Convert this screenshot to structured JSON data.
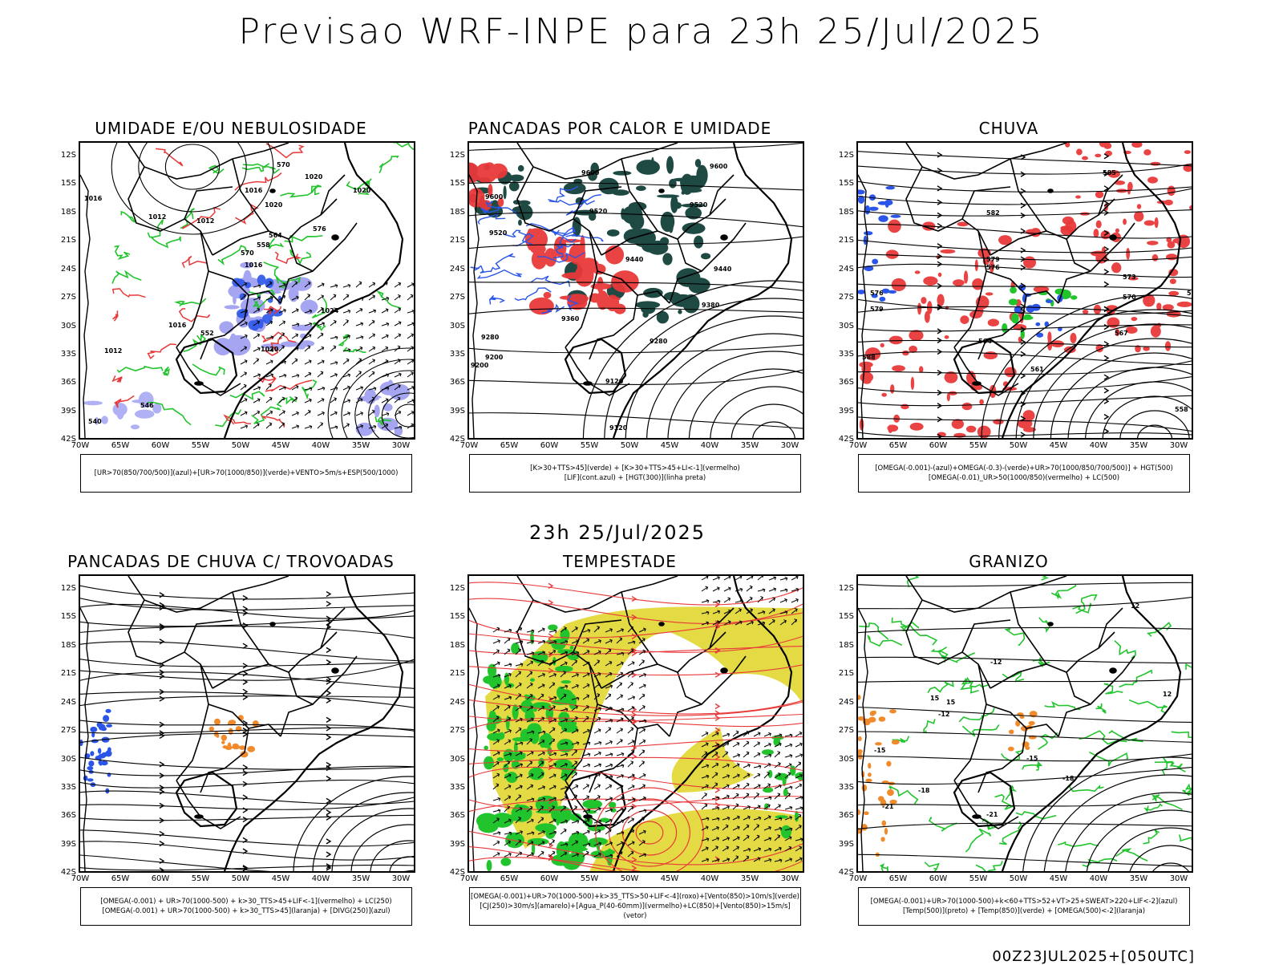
{
  "title": "Previsao WRF-INPE  para 23h 25/Jul/2025",
  "mid_title": "23h 25/Jul/2025",
  "footer_code": "00Z23JUL2025+[050UTC]",
  "lat_ticks": [
    "12S",
    "15S",
    "18S",
    "21S",
    "24S",
    "27S",
    "30S",
    "33S",
    "36S",
    "39S",
    "42S"
  ],
  "lon_ticks": [
    "70W",
    "65W",
    "60W",
    "55W",
    "50W",
    "45W",
    "40W",
    "35W",
    "30W"
  ],
  "colors": {
    "red": "#e8393a",
    "green": "#22c42e",
    "blue": "#2a55e8",
    "dark_teal": "#1f4a44",
    "purple": "#8f8ff0",
    "yellow": "#e3d93a",
    "orange": "#f08a2a"
  },
  "panels": [
    {
      "title": "UMIDADE E/OU NEBULOSIDADE",
      "legend": [
        "[UR>70(850/700/500)](azul)+[UR>70(1000/850)](verde)+VENTO>5m/s+ESP(500/1000)"
      ],
      "contour_labels": [
        "1020",
        "1016",
        "1020",
        "1012",
        "1012",
        "1016",
        "1016",
        "1020",
        "1024",
        "1016",
        "1012",
        "1020",
        "570",
        "564",
        "558",
        "552",
        "546",
        "540",
        "576",
        "570"
      ]
    },
    {
      "title": "PANCADAS POR CALOR E UMIDADE",
      "legend": [
        "[K>30+TTS>45](verde) + [K>30+TTS>45+LI<-1](vermelho)",
        "[LIF](cont.azul) + [HGT(300)](linha preta)"
      ],
      "contour_labels": [
        "9600",
        "9600",
        "9520",
        "9520",
        "9600",
        "9520",
        "9440",
        "9440",
        "9380",
        "9360",
        "9280",
        "9280",
        "9200",
        "9120",
        "9200",
        "9120"
      ]
    },
    {
      "title": "CHUVA",
      "legend": [
        "[OMEGA(-0.001)-(azul)+OMEGA(-0.3)-(verde)+UR>70(1000/850/700/500)] + HGT(500)",
        "[OMEGA(-0.01)_UR>50(1000/850)(vermelho) + LC(500)"
      ],
      "contour_labels": [
        "585",
        "582",
        "579",
        "576",
        "573",
        "570",
        "567",
        "564",
        "561",
        "558",
        "588",
        "573",
        "576",
        "579"
      ]
    },
    {
      "title": "PANCADAS DE CHUVA C/ TROVOADAS",
      "legend": [
        "[OMEGA(-0.001) + UR>70(1000-500) + k>30_TTS>45+LIF<-1](vermelho) + LC(250)",
        "[OMEGA(-0.001) + UR>70(1000-500) + k>30_TTS>45](laranja) + [DIVG(250)](azul)"
      ],
      "contour_labels": []
    },
    {
      "title": "TEMPESTADE",
      "legend": [
        "[OMEGA(-0.001)+UR>70(1000-500)+k>35_TTS>50+LIF<-4](roxo)+[Vento(850)>10m/s](verde)",
        "[CJ(250)>30m/s](amarelo)+[Agua_P(40-60mm)](vermelho)+LC(850)+[Vento(850)>15m/s](vetor)"
      ],
      "contour_labels": []
    },
    {
      "title": "GRANIZO",
      "legend": [
        "[OMEGA(-0.001)+UR>70(1000-500)+k<60+TTS>52+VT>25+SWEAT>220+LIF<-2](azul)",
        "[Temp(500)](preto) + [Temp(850)](verde) + [OMEGA(500)<-2](laranja)"
      ],
      "contour_labels": [
        "-12",
        "-12",
        "-15",
        "-15",
        "-18",
        "-18",
        "-21",
        "-21",
        "12",
        "15",
        "15",
        "12"
      ]
    }
  ]
}
